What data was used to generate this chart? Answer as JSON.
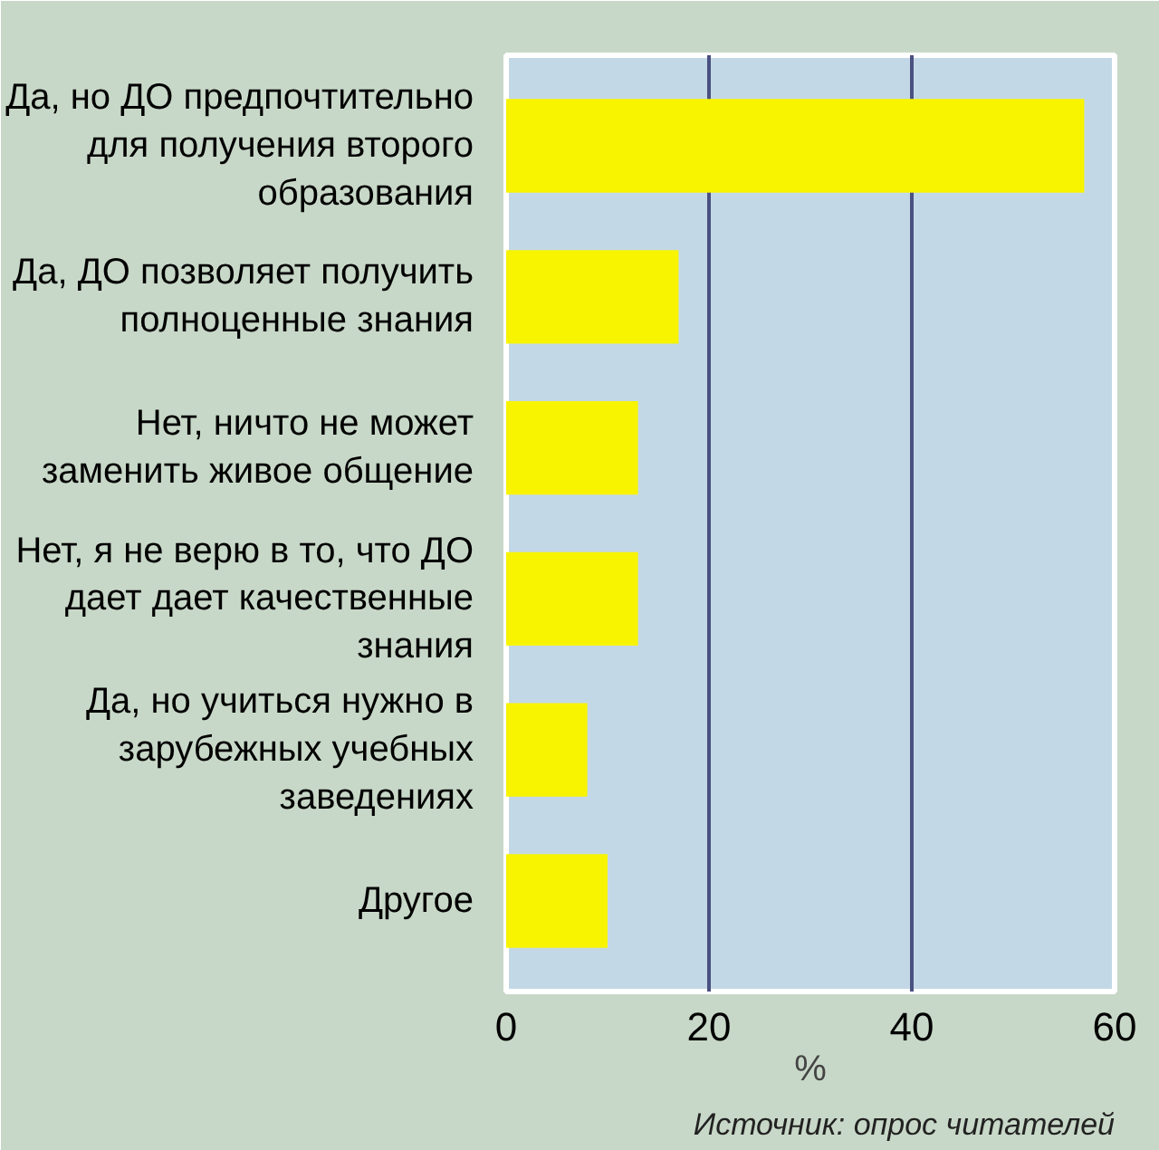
{
  "chart_data": {
    "type": "bar",
    "orientation": "horizontal",
    "categories": [
      "Да, но ДО предпочтительно\nдля получения второго\nобразования",
      "Да, ДО позволяет получить\nполноценные знания",
      "Нет, ничто не может\nзаменить живое общение",
      "Нет, я не верю в то, что ДО\nдает дает качественные\nзнания",
      "Да, но учиться нужно в\nзарубежных учебных\nзаведениях",
      "Другое"
    ],
    "values": [
      57,
      17,
      13,
      13,
      8,
      10
    ],
    "color": "#f8f400",
    "xlabel": "%",
    "xlim": [
      0,
      60
    ],
    "xticks": [
      0,
      20,
      40,
      60
    ],
    "grid": "x",
    "annotations": [
      "Источник: опрос читателей"
    ]
  }
}
